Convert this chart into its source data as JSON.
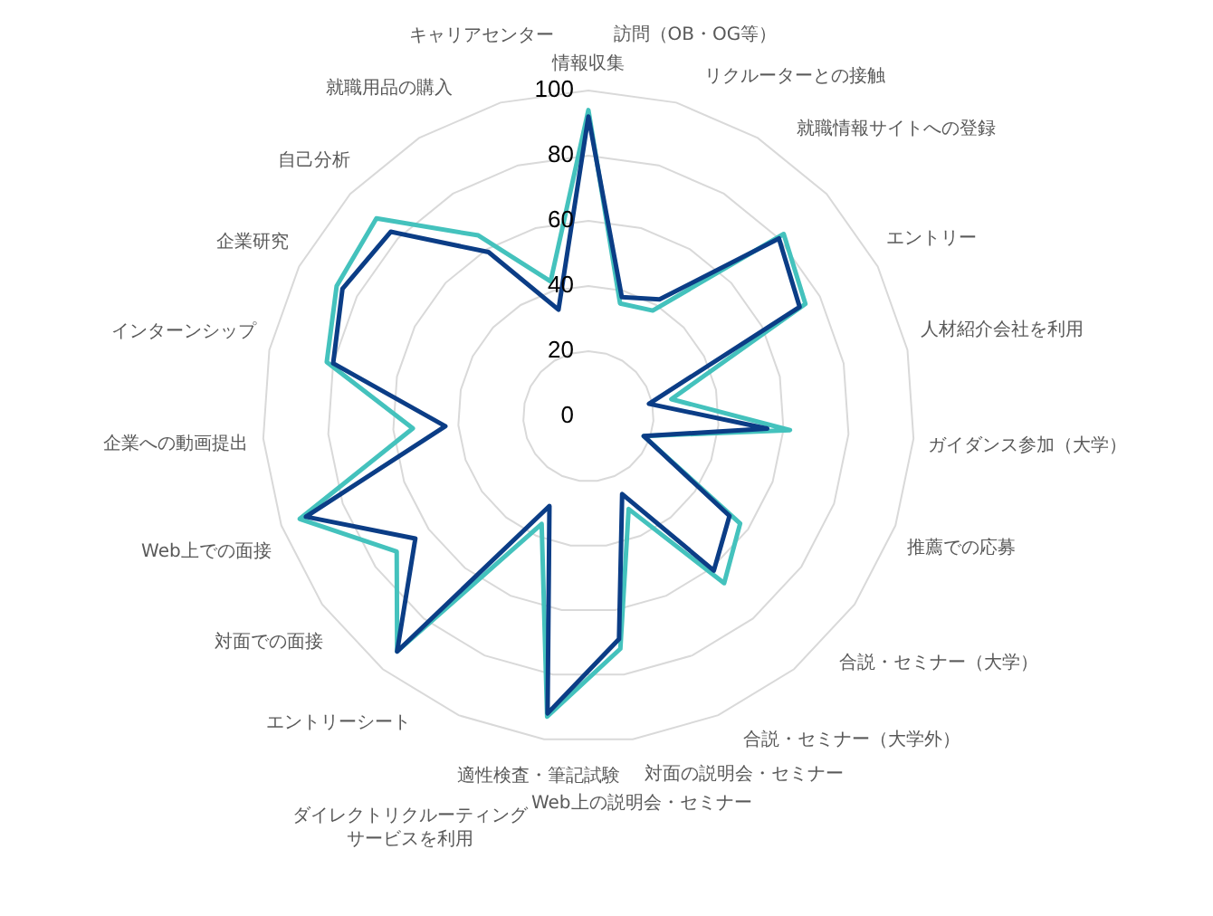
{
  "chart_data": {
    "type": "radar",
    "categories": [
      "情報収集",
      "訪問（OB・OG等）",
      "リクルーターとの接触",
      "就職情報サイトへの登録",
      "エントリー",
      "人材紹介会社を利用",
      "ガイダンス参加（大学）",
      "推薦での応募",
      "合説・セミナー（大学）",
      "合説・セミナー（大学外）",
      "対面の説明会・セミナー",
      "Web上の説明会・セミナー",
      "適性検査・筆記試験",
      "ダイレクトリクルーティングサービスを利用",
      "エントリーシート",
      "対面での面接",
      "Web上での面接",
      "企業への動画提出",
      "インターンシップ",
      "企業研究",
      "自己分析",
      "就職用品の購入",
      "キャリアセンター"
    ],
    "series": [
      {
        "color": "#0b3d86",
        "values": [
          92,
          38,
          42,
          80,
          73,
          19,
          55,
          18,
          53,
          61,
          26,
          69,
          92,
          30,
          93,
          65,
          92,
          44,
          80,
          85,
          83,
          59,
          34
        ]
      },
      {
        "color": "#44c2bd",
        "values": [
          94,
          36,
          38,
          82,
          75,
          26,
          62,
          18,
          57,
          66,
          31,
          72,
          93,
          36,
          93,
          72,
          94,
          54,
          82,
          87,
          89,
          65,
          43
        ]
      }
    ],
    "ylim": [
      0,
      100
    ],
    "yticks": [
      0,
      20,
      40,
      60,
      80,
      100
    ],
    "grid": true,
    "legend": false,
    "marker": "none",
    "line_style": "solid"
  }
}
